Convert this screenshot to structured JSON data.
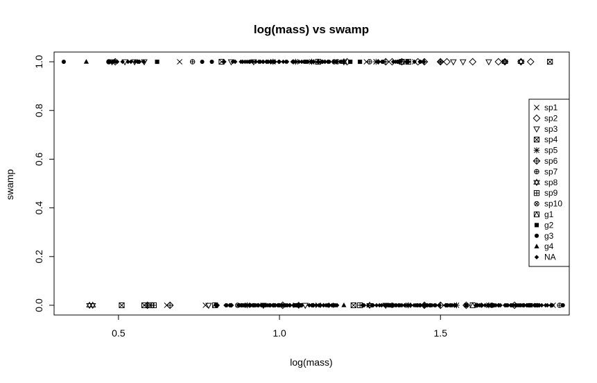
{
  "chart_data": {
    "type": "scatter",
    "title": "log(mass) vs swamp",
    "xlabel": "log(mass)",
    "ylabel": "swamp",
    "xlim": [
      0.3,
      1.9
    ],
    "ylim": [
      -0.04,
      1.04
    ],
    "xticks": [
      0.5,
      1.0,
      1.5
    ],
    "xtick_labels": [
      "0.5",
      "1.0",
      "1.5"
    ],
    "yticks": [
      0.0,
      0.2,
      0.4,
      0.6,
      0.8,
      1.0
    ],
    "ytick_labels": [
      "0.0",
      "0.2",
      "0.4",
      "0.6",
      "0.8",
      "1.0"
    ],
    "legend_position": "right",
    "legend": [
      "sp1",
      "sp2",
      "sp3",
      "sp4",
      "sp5",
      "sp6",
      "sp7",
      "sp8",
      "sp9",
      "sp10",
      "g1",
      "g2",
      "g3",
      "g4",
      "NA"
    ],
    "series": [
      {
        "name": "sp1",
        "x": [
          0.69,
          1.27,
          1.05,
          1.12,
          0.65,
          1.62,
          1.85,
          0.77,
          1.16,
          1.3,
          1.42
        ],
        "y": [
          1,
          1,
          0,
          0,
          0,
          0,
          0,
          0,
          0,
          1,
          1
        ]
      },
      {
        "name": "sp2",
        "x": [
          1.78,
          1.75,
          1.68,
          1.6,
          1.52,
          1.43,
          0.49,
          1.35,
          1.21,
          1.01,
          1.73,
          1.58
        ],
        "y": [
          1,
          1,
          1,
          1,
          1,
          1,
          1,
          1,
          1,
          0,
          0,
          0
        ]
      },
      {
        "name": "sp3",
        "x": [
          0.48,
          0.52,
          0.55,
          0.58,
          0.85,
          0.92,
          1.54,
          1.57,
          1.65,
          0.78,
          0.95,
          1.08,
          1.33
        ],
        "y": [
          1,
          1,
          1,
          1,
          1,
          1,
          1,
          1,
          1,
          0,
          0,
          0,
          0
        ]
      },
      {
        "name": "sp4",
        "x": [
          0.51,
          1.84,
          0.82,
          0.58,
          1.23
        ],
        "y": [
          0,
          1,
          1,
          0,
          0
        ]
      },
      {
        "name": "sp5",
        "x": [
          0.98,
          1.05,
          1.1,
          1.3,
          1.55,
          1.65,
          0.9,
          1.4
        ],
        "y": [
          1,
          1,
          1,
          1,
          0,
          0,
          0,
          0
        ]
      },
      {
        "name": "sp6",
        "x": [
          1.33,
          1.38,
          1.45,
          1.5,
          1.7,
          0.59,
          0.66,
          1.5,
          1.45
        ],
        "y": [
          1,
          1,
          1,
          1,
          1,
          0,
          0,
          0,
          0
        ]
      },
      {
        "name": "sp7",
        "x": [
          0.47,
          0.73,
          1.18,
          1.28,
          1.66,
          1.87
        ],
        "y": [
          1,
          1,
          1,
          1,
          0,
          0
        ]
      },
      {
        "name": "sp8",
        "x": [
          0.41,
          1.2,
          1.7,
          1.75,
          1.28,
          1.06,
          0.42
        ],
        "y": [
          0,
          1,
          1,
          1,
          0,
          0,
          0
        ]
      },
      {
        "name": "sp9",
        "x": [
          0.61,
          1.25,
          0.6,
          1.4
        ],
        "y": [
          0,
          0,
          0,
          1
        ]
      },
      {
        "name": "sp10",
        "x": [
          1.17,
          1.5,
          0.87,
          1.35
        ],
        "y": [
          1,
          1,
          0,
          0
        ]
      },
      {
        "name": "g1",
        "x": [
          1.38,
          1.12,
          0.8,
          1.6
        ],
        "y": [
          1,
          1,
          0,
          0
        ]
      },
      {
        "name": "g2",
        "x": [
          0.62,
          1.22,
          1.25,
          0.95,
          1.58,
          1.78
        ],
        "y": [
          1,
          1,
          1,
          0,
          0,
          0
        ]
      },
      {
        "name": "g3",
        "x": [
          0.33,
          0.76,
          0.79,
          1.88,
          0.47
        ],
        "y": [
          1,
          1,
          1,
          0,
          1
        ]
      },
      {
        "name": "g4",
        "x": [
          0.4,
          1.2,
          1.65
        ],
        "y": [
          1,
          0,
          0
        ]
      },
      {
        "name": "NA",
        "x": [
          0.95,
          1.0,
          1.02,
          1.05,
          1.08,
          1.15,
          0.85,
          0.9,
          0.95,
          1.0,
          1.05,
          1.1,
          1.35,
          1.4,
          1.45,
          1.7,
          1.75,
          1.8
        ],
        "y": [
          1,
          1,
          1,
          1,
          1,
          1,
          0,
          0,
          0,
          0,
          0,
          0,
          0,
          0,
          0,
          0,
          0,
          0
        ]
      }
    ],
    "dense_clusters": [
      {
        "series": "NA",
        "y": 1,
        "x_range": [
          0.82,
          1.2
        ],
        "n": 60
      },
      {
        "series": "NA",
        "y": 0,
        "x_range": [
          0.8,
          1.18
        ],
        "n": 120
      },
      {
        "series": "NA",
        "y": 0,
        "x_range": [
          1.25,
          1.55
        ],
        "n": 70
      },
      {
        "series": "NA",
        "y": 0,
        "x_range": [
          1.6,
          1.85
        ],
        "n": 60
      },
      {
        "series": "NA",
        "y": 1,
        "x_range": [
          0.48,
          0.58
        ],
        "n": 15
      },
      {
        "series": "NA",
        "y": 1,
        "x_range": [
          1.3,
          1.45
        ],
        "n": 20
      }
    ]
  }
}
